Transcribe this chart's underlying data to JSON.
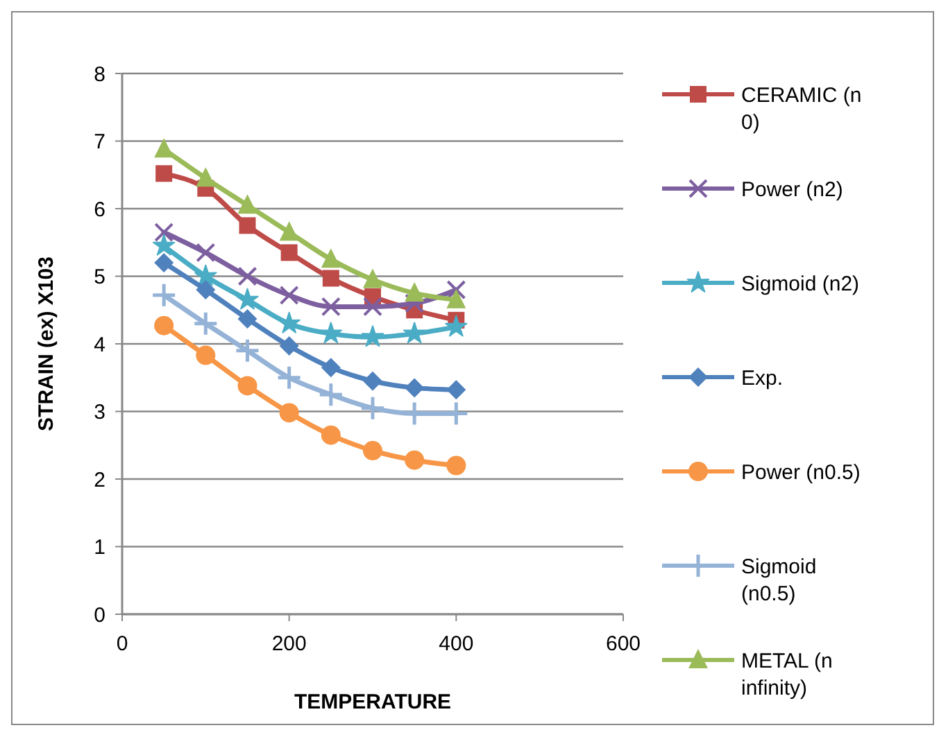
{
  "chart_data": {
    "type": "line",
    "xlabel": "TEMPERATURE",
    "ylabel": "STRAIN (ex) X103",
    "x": [
      50,
      100,
      150,
      200,
      250,
      300,
      350,
      400
    ],
    "xlim": [
      0,
      600
    ],
    "xticks": [
      0,
      200,
      400,
      600
    ],
    "ylim": [
      0,
      8
    ],
    "yticks": [
      0,
      1,
      2,
      3,
      4,
      5,
      6,
      7,
      8
    ],
    "grid": "y",
    "legend": "right",
    "series": [
      {
        "name": "CERAMIC (n 0)",
        "color": "#be4b48",
        "marker": "square",
        "values": [
          6.52,
          6.3,
          5.75,
          5.35,
          4.97,
          4.7,
          4.5,
          4.35
        ]
      },
      {
        "name": "Power (n2)",
        "color": "#7d5fa0",
        "marker": "cross",
        "values": [
          5.65,
          5.35,
          5.0,
          4.72,
          4.55,
          4.55,
          4.6,
          4.8
        ]
      },
      {
        "name": "Sigmoid (n2)",
        "color": "#4aacc5",
        "marker": "star",
        "values": [
          5.45,
          5.0,
          4.65,
          4.3,
          4.15,
          4.1,
          4.15,
          4.25
        ]
      },
      {
        "name": "Exp.",
        "color": "#4f81bd",
        "marker": "diamond",
        "values": [
          5.2,
          4.8,
          4.37,
          3.97,
          3.65,
          3.45,
          3.35,
          3.32
        ]
      },
      {
        "name": "Power (n0.5)",
        "color": "#f79646",
        "marker": "circle",
        "values": [
          4.27,
          3.83,
          3.38,
          2.98,
          2.65,
          2.42,
          2.28,
          2.2
        ]
      },
      {
        "name": "Sigmoid (n0.5)",
        "color": "#95b3d7",
        "marker": "plus",
        "values": [
          4.72,
          4.3,
          3.9,
          3.5,
          3.25,
          3.05,
          2.97,
          2.97
        ]
      },
      {
        "name": "METAL (n infinity)",
        "color": "#9bbb59",
        "marker": "triangle",
        "values": [
          6.88,
          6.45,
          6.05,
          5.65,
          5.25,
          4.95,
          4.75,
          4.65
        ]
      }
    ]
  }
}
